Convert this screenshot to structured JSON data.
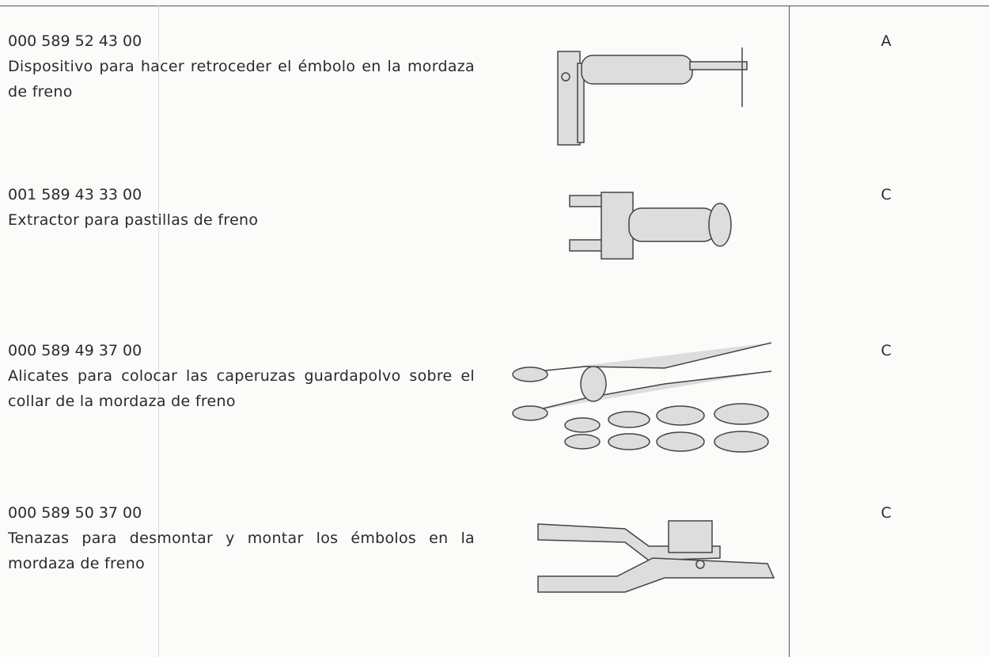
{
  "items": [
    {
      "number": "000 589 52 43 00",
      "description": "Dispositivo para hacer retroceder el émbolo en la mordaza de freno",
      "class": "A"
    },
    {
      "number": "001 589 43 33 00",
      "description": "Extractor para pastillas de freno",
      "class": "C"
    },
    {
      "number": "000 589 49 37 00",
      "description": "Alicates para colocar las caperuzas guardapolvo sobre el collar de la mordaza de freno",
      "class": "C"
    },
    {
      "number": "000 589 50 37 00",
      "description": "Tenazas para desmontar y montar los émbolos en la mordaza de freno",
      "class": "C"
    }
  ]
}
